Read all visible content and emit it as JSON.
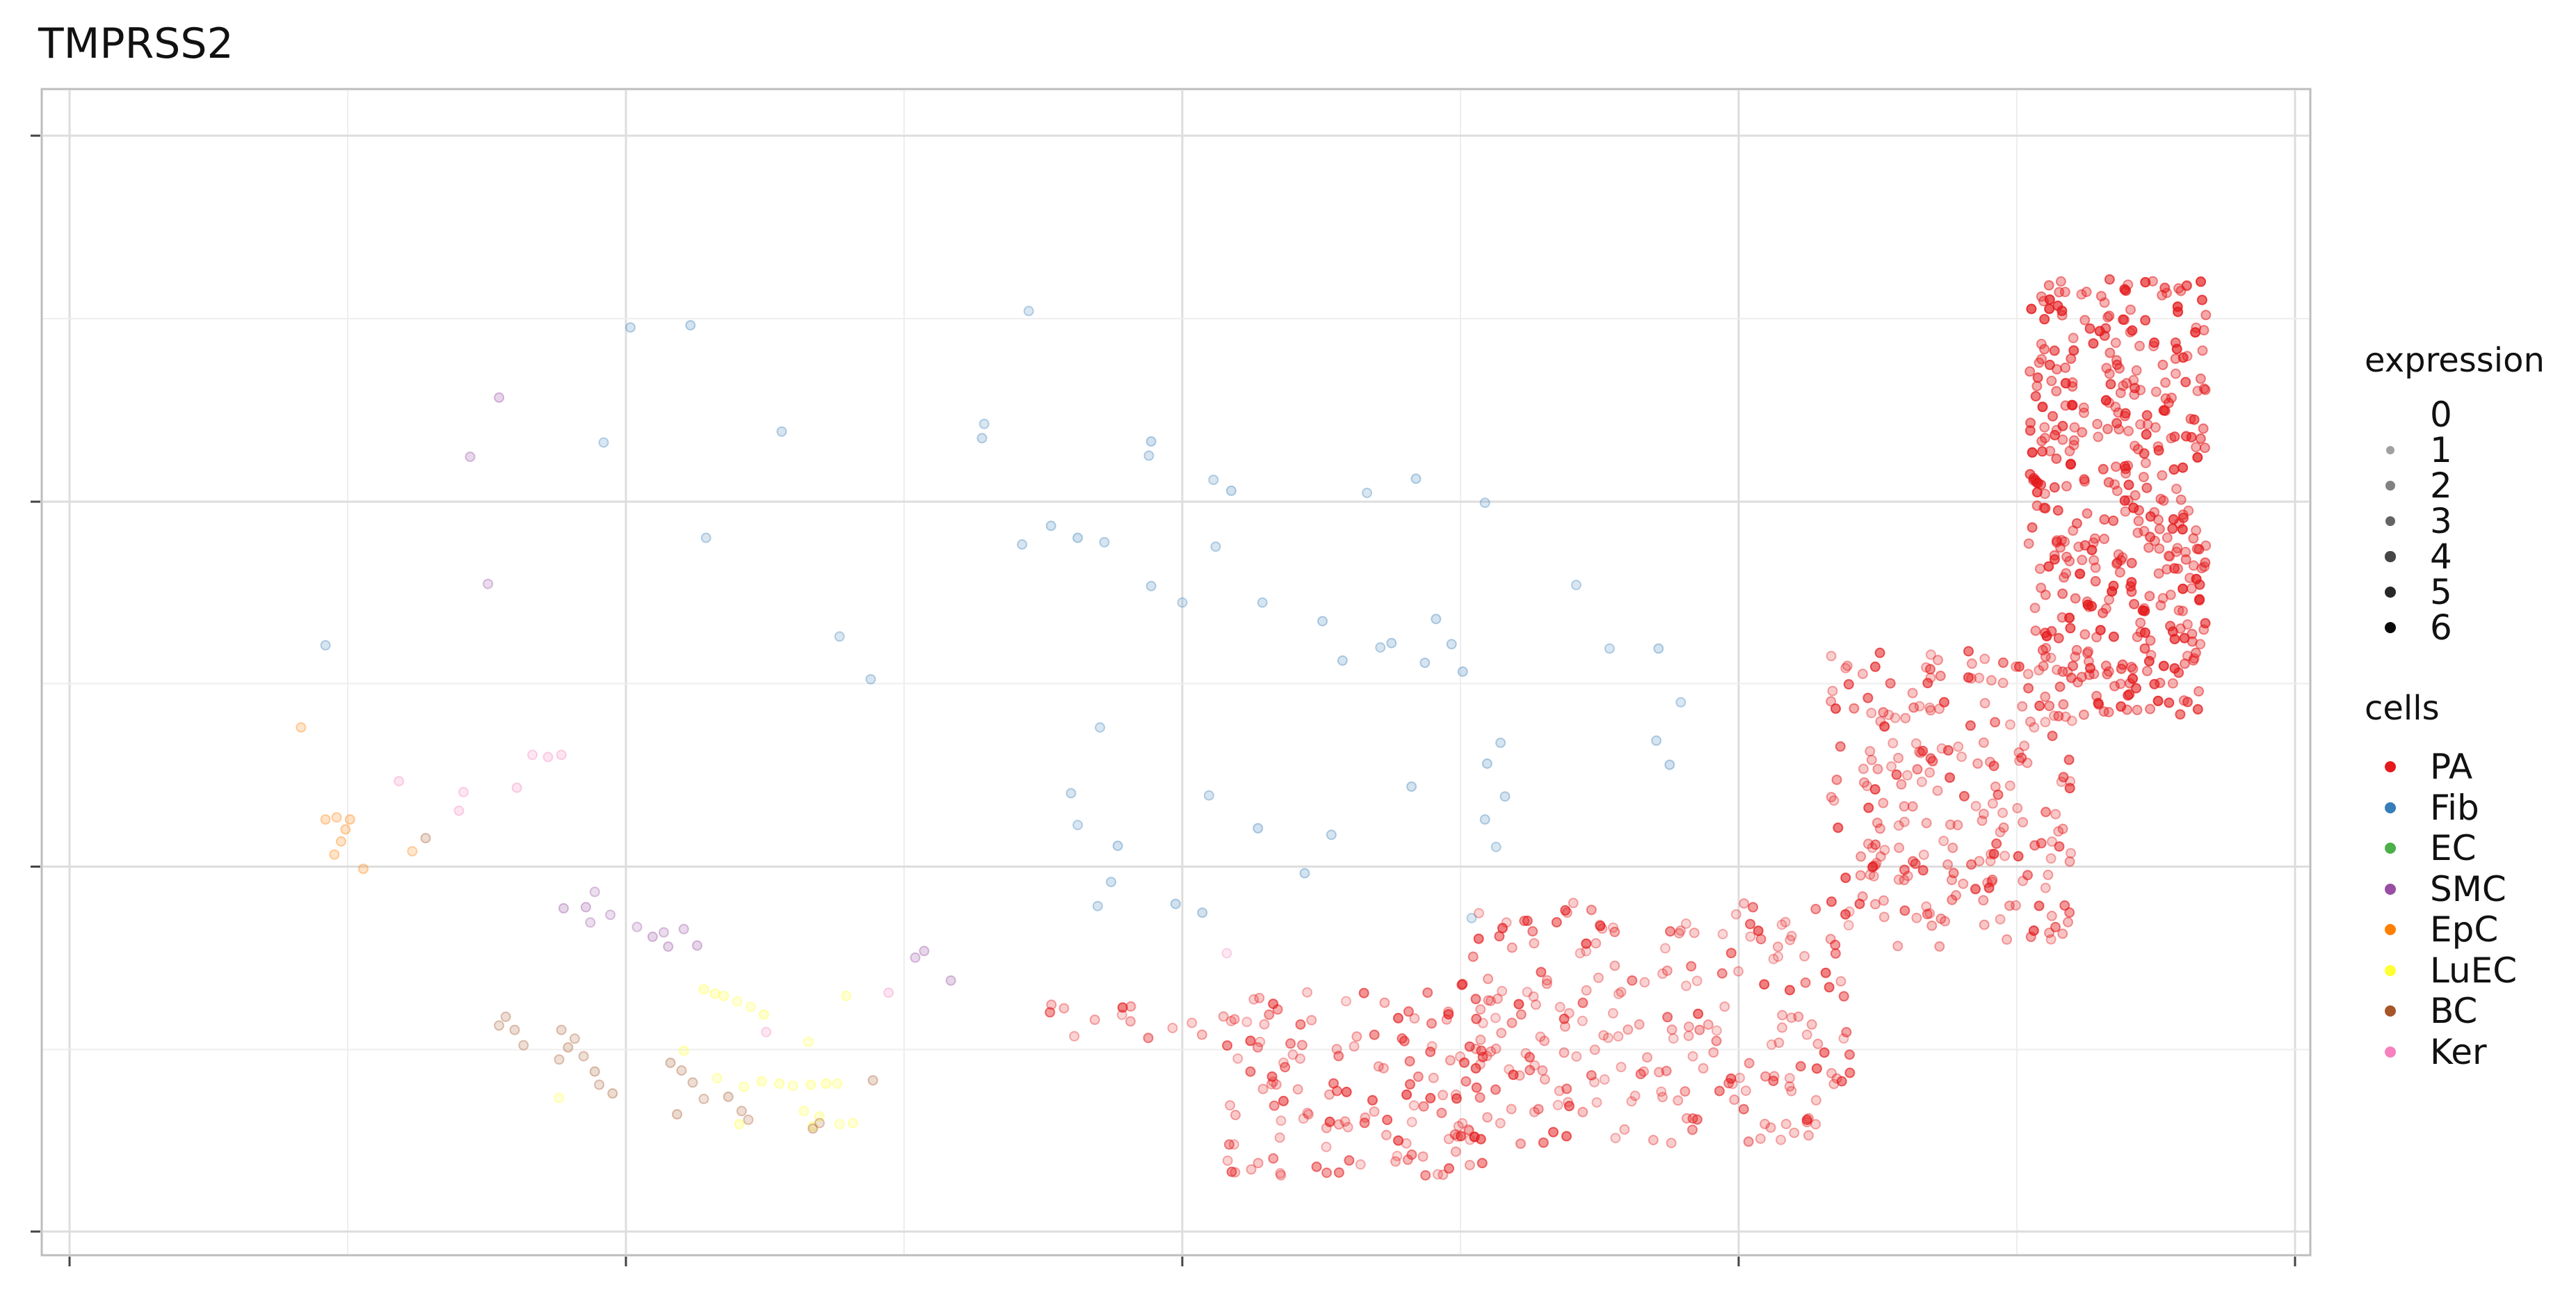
{
  "title": "TMPRSS2",
  "legend_expression": {
    "title": "expression",
    "levels": [
      "0",
      "1",
      "2",
      "3",
      "4",
      "5",
      "6"
    ]
  },
  "legend_cells": {
    "title": "cells",
    "items": [
      {
        "label": "PA",
        "color": "#E41A1C"
      },
      {
        "label": "Fib",
        "color": "#377EB8"
      },
      {
        "label": "EC",
        "color": "#4DAF4A"
      },
      {
        "label": "SMC",
        "color": "#984EA3"
      },
      {
        "label": "EpC",
        "color": "#FF7F00"
      },
      {
        "label": "LuEC",
        "color": "#FFFF33"
      },
      {
        "label": "BC",
        "color": "#A65628"
      },
      {
        "label": "Ker",
        "color": "#F781BF"
      }
    ]
  },
  "chart_data": {
    "type": "scatter",
    "title": "TMPRSS2",
    "xlabel": "",
    "ylabel": "",
    "x_tick_labels": [],
    "y_tick_labels": [],
    "grid": true,
    "legend_position": "right",
    "note_encoding": "point color = cell type, point opacity = expression level",
    "xlim": [
      0,
      100
    ],
    "ylim": [
      0,
      100
    ],
    "series": [
      {
        "name": "PA",
        "regions": [
          {
            "x_range": [
              88,
              96
            ],
            "y_range": [
              47,
              87
            ],
            "n": 420,
            "expression_mean": 2.6
          },
          {
            "x_range": [
              79,
              90
            ],
            "y_range": [
              26,
              53
            ],
            "n": 230,
            "expression_mean": 1.6
          },
          {
            "x_range": [
              62,
              80
            ],
            "y_range": [
              8,
              30
            ],
            "n": 230,
            "expression_mean": 1.3
          },
          {
            "x_range": [
              52,
              64
            ],
            "y_range": [
              5,
              22
            ],
            "n": 140,
            "expression_mean": 1.2
          },
          {
            "x_range": [
              44,
              52
            ],
            "y_range": [
              17,
              21
            ],
            "n": 14,
            "expression_mean": 1.0
          }
        ]
      },
      {
        "name": "Fib",
        "points": [
          [
            25.2,
            82.5
          ],
          [
            27.9,
            82.7
          ],
          [
            43.1,
            84
          ],
          [
            24,
            72
          ],
          [
            32,
            73
          ],
          [
            41.1,
            73.7
          ],
          [
            41,
            72.4
          ],
          [
            48.6,
            72.1
          ],
          [
            48.5,
            70.8
          ],
          [
            51.4,
            68.6
          ],
          [
            52.2,
            67.6
          ],
          [
            58.3,
            67.4
          ],
          [
            60.5,
            68.7
          ],
          [
            63.6,
            66.5
          ],
          [
            44.1,
            64.4
          ],
          [
            45.3,
            63.3
          ],
          [
            46.5,
            62.9
          ],
          [
            51.5,
            62.5
          ],
          [
            42.8,
            62.7
          ],
          [
            28.6,
            63.3
          ],
          [
            48.6,
            58.9
          ],
          [
            50,
            57.4
          ],
          [
            53.6,
            57.4
          ],
          [
            56.3,
            55.7
          ],
          [
            61.4,
            55.9
          ],
          [
            67.7,
            59
          ],
          [
            34.6,
            54.3
          ],
          [
            58.9,
            53.3
          ],
          [
            59.4,
            53.7
          ],
          [
            62.1,
            53.6
          ],
          [
            62.6,
            51.1
          ],
          [
            57.2,
            52.1
          ],
          [
            60.9,
            51.9
          ],
          [
            69.2,
            53.2
          ],
          [
            71.4,
            53.2
          ],
          [
            71.9,
            42.6
          ],
          [
            71.3,
            44.8
          ],
          [
            72.4,
            48.3
          ],
          [
            64.3,
            44.6
          ],
          [
            63.7,
            42.7
          ],
          [
            64.5,
            39.7
          ],
          [
            60.3,
            40.6
          ],
          [
            55.5,
            32.7
          ],
          [
            46.3,
            46
          ],
          [
            51.2,
            39.8
          ],
          [
            45,
            40
          ],
          [
            56.7,
            36.2
          ],
          [
            53.4,
            36.8
          ],
          [
            45.3,
            37.1
          ],
          [
            47.1,
            35.2
          ],
          [
            46.8,
            31.9
          ],
          [
            50.9,
            29.1
          ],
          [
            46.2,
            29.7
          ],
          [
            49.7,
            29.9
          ],
          [
            63.6,
            37.6
          ],
          [
            64.1,
            35.1
          ],
          [
            63,
            28.6
          ],
          [
            11.5,
            53.5
          ],
          [
            36,
            50.4
          ]
        ]
      },
      {
        "name": "EC",
        "points": []
      },
      {
        "name": "SMC",
        "points": [
          [
            19.3,
            76.1
          ],
          [
            18,
            70.7
          ],
          [
            18.8,
            59.1
          ],
          [
            23.6,
            31
          ],
          [
            23.2,
            29.6
          ],
          [
            22.2,
            29.5
          ],
          [
            23.4,
            28.2
          ],
          [
            24.3,
            28.9
          ],
          [
            25.5,
            27.8
          ],
          [
            26.2,
            26.9
          ],
          [
            26.7,
            27.3
          ],
          [
            27.6,
            27.6
          ],
          [
            26.9,
            26
          ],
          [
            28.2,
            26.1
          ],
          [
            38.4,
            25.6
          ],
          [
            38,
            25
          ],
          [
            39.6,
            22.9
          ]
        ]
      },
      {
        "name": "EpC",
        "points": [
          [
            10.4,
            46
          ],
          [
            11.5,
            37.6
          ],
          [
            12,
            37.8
          ],
          [
            12.6,
            37.6
          ],
          [
            12.4,
            36.7
          ],
          [
            12.2,
            35.6
          ],
          [
            11.9,
            34.4
          ],
          [
            13.2,
            33.1
          ],
          [
            15.4,
            34.7
          ]
        ]
      },
      {
        "name": "LuEC",
        "points": [
          [
            28.5,
            22.1
          ],
          [
            29,
            21.7
          ],
          [
            29.4,
            21.5
          ],
          [
            30,
            21
          ],
          [
            30.6,
            20.5
          ],
          [
            31.2,
            19.8
          ],
          [
            27.6,
            16.5
          ],
          [
            29.1,
            14
          ],
          [
            30.3,
            13.2
          ],
          [
            31.1,
            13.7
          ],
          [
            31.9,
            13.5
          ],
          [
            32.5,
            13.3
          ],
          [
            33.3,
            13.4
          ],
          [
            34,
            13.5
          ],
          [
            34.5,
            13.5
          ],
          [
            33,
            11
          ],
          [
            33.7,
            10.5
          ],
          [
            34.6,
            9.8
          ],
          [
            35.2,
            9.9
          ],
          [
            33.2,
            17.3
          ],
          [
            34.9,
            21.5
          ],
          [
            22,
            12.2
          ],
          [
            30.1,
            9.8
          ],
          [
            33.4,
            9.6
          ]
        ]
      },
      {
        "name": "BC",
        "points": [
          [
            19.3,
            18.8
          ],
          [
            19.6,
            19.6
          ],
          [
            20,
            18.4
          ],
          [
            20.4,
            17
          ],
          [
            22.1,
            18.4
          ],
          [
            22.7,
            17.6
          ],
          [
            22.4,
            16.8
          ],
          [
            22,
            15.7
          ],
          [
            23.1,
            16
          ],
          [
            23.6,
            14.6
          ],
          [
            23.8,
            13.4
          ],
          [
            24.4,
            12.6
          ],
          [
            27,
            15.4
          ],
          [
            27.5,
            14.7
          ],
          [
            28,
            13.6
          ],
          [
            28.5,
            12.1
          ],
          [
            29.6,
            12.3
          ],
          [
            27.3,
            10.7
          ],
          [
            30.2,
            11
          ],
          [
            30.5,
            10.2
          ],
          [
            33.4,
            9.4
          ],
          [
            33.7,
            9.9
          ],
          [
            36.1,
            13.8
          ],
          [
            16,
            35.9
          ]
        ]
      },
      {
        "name": "Ker",
        "points": [
          [
            17.5,
            38.4
          ],
          [
            17.7,
            40.1
          ],
          [
            14.8,
            41.1
          ],
          [
            20.1,
            40.5
          ],
          [
            21.5,
            43.3
          ],
          [
            22.1,
            43.5
          ],
          [
            20.8,
            43.5
          ],
          [
            31.3,
            18.2
          ],
          [
            36.8,
            21.8
          ],
          [
            52,
            25.4
          ]
        ]
      }
    ]
  }
}
